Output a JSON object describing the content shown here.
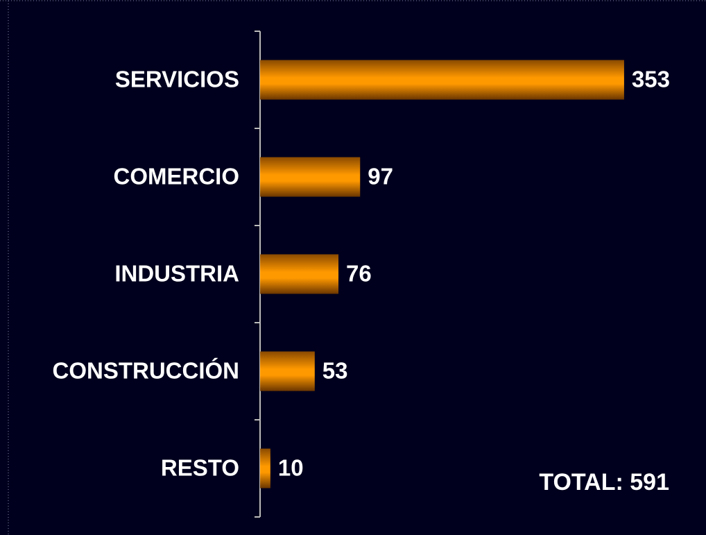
{
  "chart_data": {
    "type": "barh",
    "categories": [
      "SERVICIOS",
      "COMERCIO",
      "INDUSTRIA",
      "CONSTRUCCIÓN",
      "RESTO"
    ],
    "values": [
      353,
      97,
      76,
      53,
      10
    ],
    "color": "#ff9900",
    "annotation": "TOTAL: 591"
  }
}
